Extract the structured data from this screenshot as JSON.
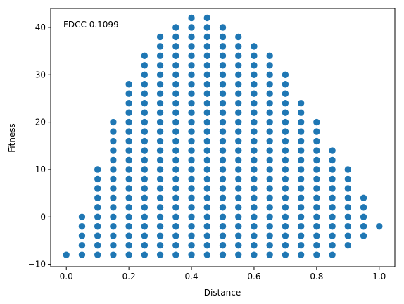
{
  "chart_data": {
    "type": "scatter",
    "xlabel": "Distance",
    "ylabel": "Fitness",
    "annotation": "FDCC 0.1099",
    "xlim": [
      -0.05,
      1.05
    ],
    "ylim": [
      -10.5,
      44
    ],
    "x_ticks": [
      0.0,
      0.2,
      0.4,
      0.6,
      0.8,
      1.0
    ],
    "x_tick_labels": [
      "0.0",
      "0.2",
      "0.4",
      "0.6",
      "0.8",
      "1.0"
    ],
    "y_ticks": [
      -10,
      0,
      10,
      20,
      30,
      40
    ],
    "y_tick_labels": [
      "−10",
      "0",
      "10",
      "20",
      "30",
      "40"
    ],
    "grid": false,
    "marker_color": "#1f77b4",
    "y_step": 2,
    "columns": [
      {
        "x": 0.0,
        "y_min": -8,
        "y_max": -8
      },
      {
        "x": 0.05,
        "y_min": -8,
        "y_max": 0
      },
      {
        "x": 0.1,
        "y_min": -8,
        "y_max": 10
      },
      {
        "x": 0.15,
        "y_min": -8,
        "y_max": 20
      },
      {
        "x": 0.2,
        "y_min": -8,
        "y_max": 28
      },
      {
        "x": 0.25,
        "y_min": -8,
        "y_max": 34
      },
      {
        "x": 0.3,
        "y_min": -8,
        "y_max": 38
      },
      {
        "x": 0.35,
        "y_min": -8,
        "y_max": 40
      },
      {
        "x": 0.4,
        "y_min": -8,
        "y_max": 42
      },
      {
        "x": 0.45,
        "y_min": -8,
        "y_max": 42
      },
      {
        "x": 0.5,
        "y_min": -8,
        "y_max": 40
      },
      {
        "x": 0.55,
        "y_min": -8,
        "y_max": 38
      },
      {
        "x": 0.6,
        "y_min": -8,
        "y_max": 36
      },
      {
        "x": 0.65,
        "y_min": -8,
        "y_max": 34
      },
      {
        "x": 0.7,
        "y_min": -8,
        "y_max": 30
      },
      {
        "x": 0.75,
        "y_min": -8,
        "y_max": 24
      },
      {
        "x": 0.8,
        "y_min": -8,
        "y_max": 20
      },
      {
        "x": 0.85,
        "y_min": -8,
        "y_max": 14
      },
      {
        "x": 0.9,
        "y_min": -6,
        "y_max": 10
      },
      {
        "x": 0.95,
        "y_min": -4,
        "y_max": 4
      },
      {
        "x": 1.0,
        "y_min": -2,
        "y_max": -2
      }
    ]
  }
}
